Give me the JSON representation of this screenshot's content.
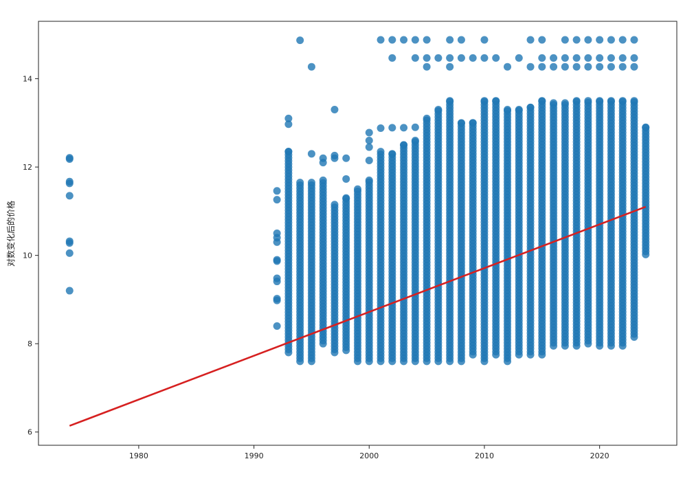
{
  "chart_data": {
    "type": "scatter",
    "title": "",
    "xlabel": "",
    "ylabel": "对数变化后的价格",
    "xlim": [
      1971.3,
      2026.7
    ],
    "ylim": [
      5.7,
      15.3
    ],
    "xticks": [
      1980,
      1990,
      2000,
      2010,
      2020
    ],
    "yticks": [
      6,
      8,
      10,
      12,
      14
    ],
    "grid": false,
    "legend": "none",
    "point_color": "#1f77b4",
    "line_color": "#d62020",
    "regression_line": {
      "x": [
        1974,
        2024
      ],
      "y": [
        6.14,
        11.1
      ]
    },
    "points_per_year": [
      {
        "year": 1974,
        "values": [
          9.2,
          10.05,
          10.28,
          10.32,
          11.35,
          11.63,
          11.67,
          12.18,
          12.21
        ]
      },
      {
        "year": 1992,
        "values": [
          8.4,
          8.98,
          9.02,
          9.41,
          9.48,
          9.87,
          9.9,
          10.3,
          10.4,
          10.5,
          11.26,
          11.46
        ]
      },
      {
        "year": 1993,
        "min": 7.8,
        "max": 12.35,
        "outliers": [
          12.97,
          13.1
        ]
      },
      {
        "year": 1994,
        "min": 7.6,
        "max": 11.65,
        "outliers": [
          14.87
        ]
      },
      {
        "year": 1995,
        "min": 7.6,
        "max": 11.65,
        "outliers": [
          12.3,
          14.27
        ]
      },
      {
        "year": 1996,
        "min": 8.0,
        "max": 11.7,
        "outliers": [
          12.1,
          12.2
        ]
      },
      {
        "year": 1997,
        "min": 7.8,
        "max": 11.15,
        "outliers": [
          12.2,
          12.26,
          13.3
        ]
      },
      {
        "year": 1998,
        "min": 7.85,
        "max": 11.3,
        "outliers": [
          11.73,
          12.2
        ]
      },
      {
        "year": 1999,
        "min": 7.6,
        "max": 11.5,
        "outliers": []
      },
      {
        "year": 2000,
        "min": 7.6,
        "max": 11.7,
        "outliers": [
          12.15,
          12.45,
          12.6,
          12.78
        ]
      },
      {
        "year": 2001,
        "min": 7.6,
        "max": 12.35,
        "outliers": [
          12.88,
          14.88
        ]
      },
      {
        "year": 2002,
        "min": 7.6,
        "max": 12.3,
        "outliers": [
          12.89,
          14.47,
          14.88
        ]
      },
      {
        "year": 2003,
        "min": 7.6,
        "max": 12.5,
        "outliers": [
          12.89,
          14.88
        ]
      },
      {
        "year": 2004,
        "min": 7.6,
        "max": 12.6,
        "outliers": [
          12.9,
          14.47,
          14.88
        ]
      },
      {
        "year": 2005,
        "min": 7.6,
        "max": 13.1,
        "outliers": [
          14.27,
          14.47,
          14.88
        ]
      },
      {
        "year": 2006,
        "min": 7.6,
        "max": 13.3,
        "outliers": [
          14.47
        ]
      },
      {
        "year": 2007,
        "min": 7.6,
        "max": 13.5,
        "outliers": [
          14.27,
          14.47,
          14.88
        ]
      },
      {
        "year": 2008,
        "min": 7.6,
        "max": 13.0,
        "outliers": [
          14.47,
          14.88
        ]
      },
      {
        "year": 2009,
        "min": 7.75,
        "max": 13.0,
        "outliers": [
          14.47
        ]
      },
      {
        "year": 2010,
        "min": 7.6,
        "max": 13.5,
        "outliers": [
          14.47,
          14.88
        ]
      },
      {
        "year": 2011,
        "min": 7.75,
        "max": 13.5,
        "outliers": [
          14.47
        ]
      },
      {
        "year": 2012,
        "min": 7.6,
        "max": 13.3,
        "outliers": [
          14.27
        ]
      },
      {
        "year": 2013,
        "min": 7.75,
        "max": 13.3,
        "outliers": [
          14.47
        ]
      },
      {
        "year": 2014,
        "min": 7.75,
        "max": 13.35,
        "outliers": [
          14.27,
          14.88
        ]
      },
      {
        "year": 2015,
        "min": 7.75,
        "max": 13.5,
        "outliers": [
          14.27,
          14.47,
          14.88
        ]
      },
      {
        "year": 2016,
        "min": 7.95,
        "max": 13.45,
        "outliers": [
          14.27,
          14.47
        ]
      },
      {
        "year": 2017,
        "min": 7.95,
        "max": 13.45,
        "outliers": [
          14.27,
          14.47,
          14.88
        ]
      },
      {
        "year": 2018,
        "min": 7.95,
        "max": 13.5,
        "outliers": [
          14.27,
          14.47,
          14.88
        ]
      },
      {
        "year": 2019,
        "min": 8.0,
        "max": 13.5,
        "outliers": [
          14.27,
          14.47,
          14.88
        ]
      },
      {
        "year": 2020,
        "min": 7.95,
        "max": 13.5,
        "outliers": [
          14.27,
          14.47,
          14.88
        ]
      },
      {
        "year": 2021,
        "min": 7.95,
        "max": 13.5,
        "outliers": [
          14.27,
          14.47,
          14.88
        ]
      },
      {
        "year": 2022,
        "min": 7.95,
        "max": 13.5,
        "outliers": [
          14.27,
          14.47,
          14.88
        ]
      },
      {
        "year": 2023,
        "min": 8.15,
        "max": 13.5,
        "outliers": [
          14.27,
          14.47,
          14.88
        ]
      },
      {
        "year": 2024,
        "min": 10.02,
        "max": 12.9,
        "outliers": []
      }
    ]
  }
}
